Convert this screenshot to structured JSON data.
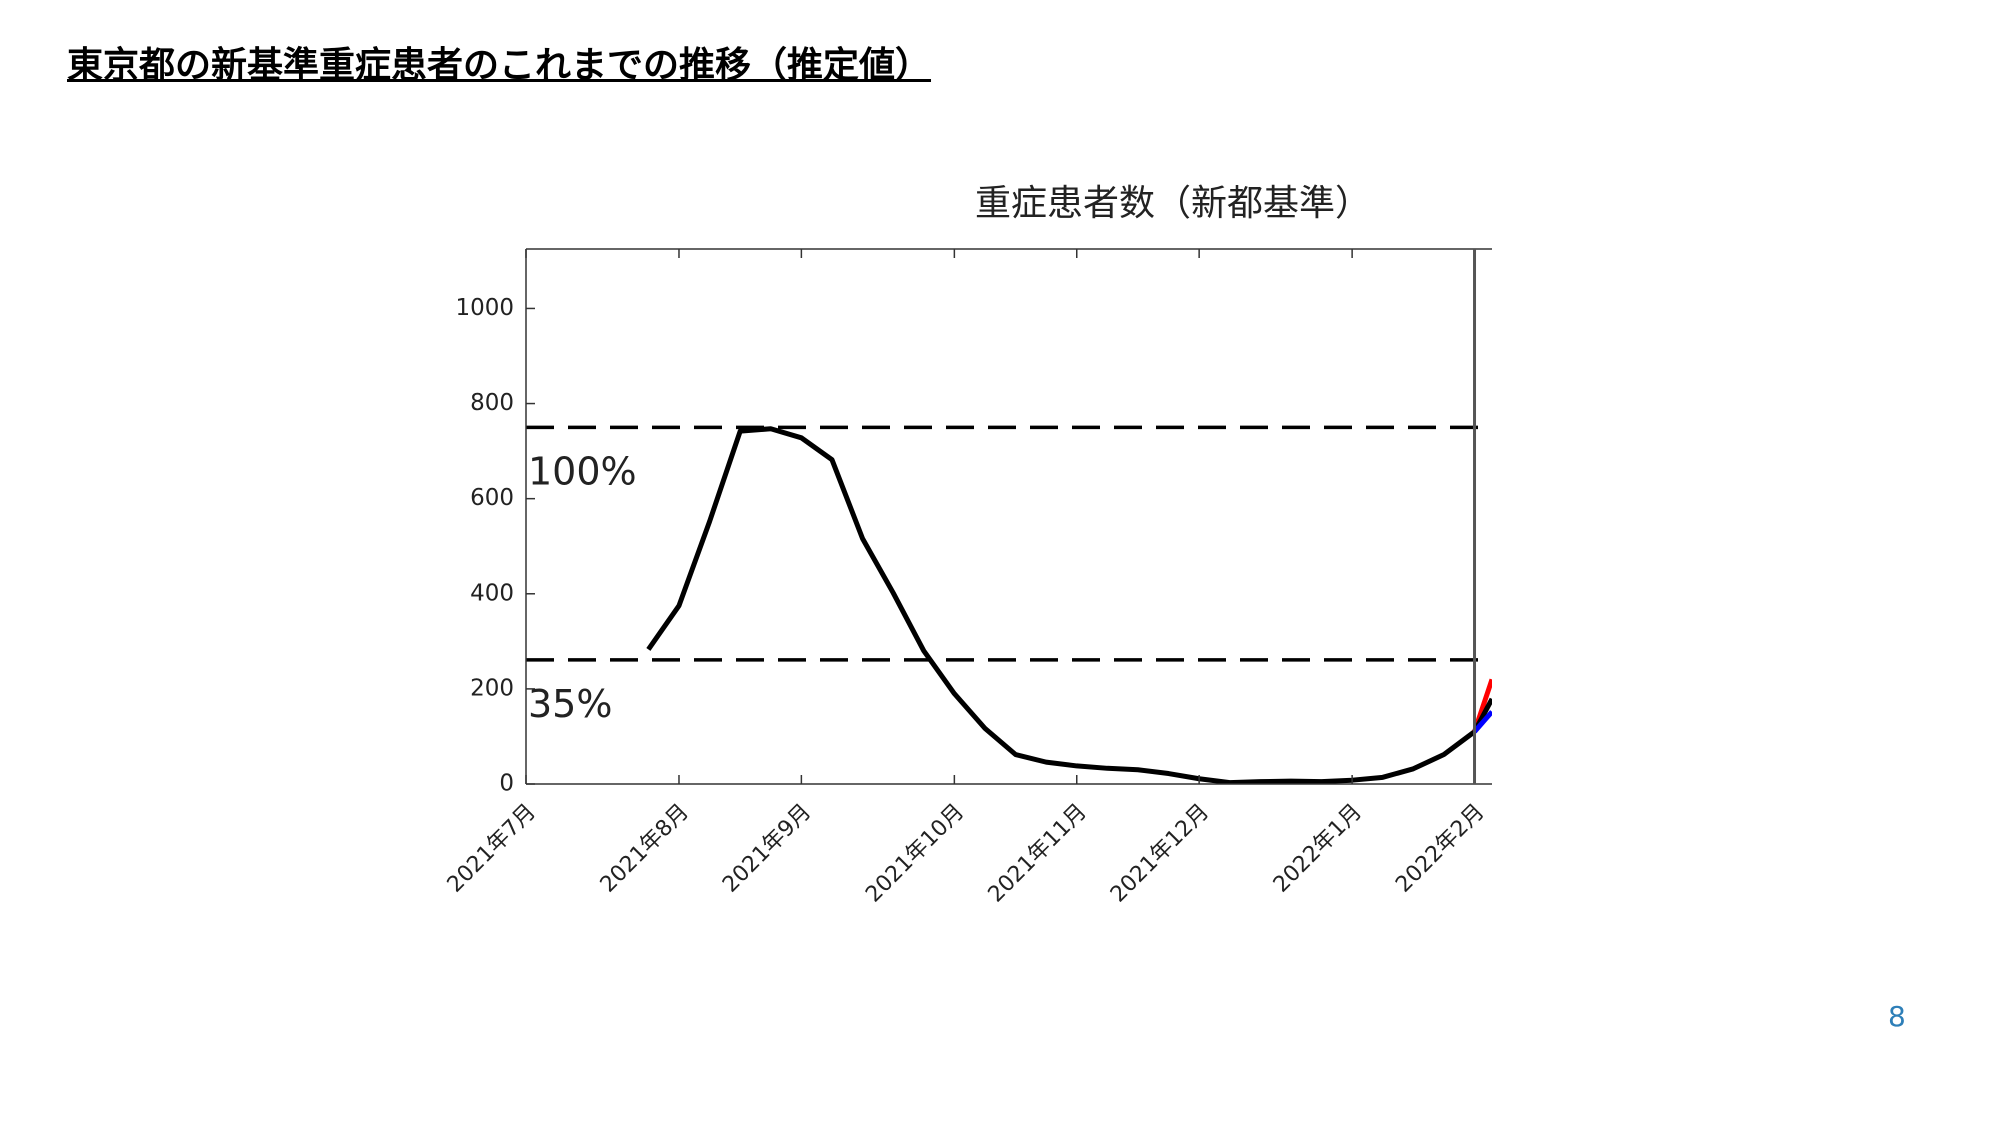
{
  "header": {
    "title": "東京都の新基準重症患者のこれまでの推移（推定値）"
  },
  "page_number": "8",
  "chart_data": {
    "type": "line",
    "title": "重症患者数（新都基準）",
    "xlim": [
      "2021-07-01",
      "2022-02-07"
    ],
    "xticks": [
      {
        "value": "2021-07-01",
        "label": "2021年7月"
      },
      {
        "value": "2021-08-05",
        "label": "2021年8月"
      },
      {
        "value": "2021-09-02",
        "label": "2021年9月"
      },
      {
        "value": "2021-10-07",
        "label": "2021年10月"
      },
      {
        "value": "2021-11-04",
        "label": "2021年11月"
      },
      {
        "value": "2021-12-02",
        "label": "2021年12月"
      },
      {
        "value": "2022-01-06",
        "label": "2022年1月"
      },
      {
        "value": "2022-02-03",
        "label": "2022年2月"
      }
    ],
    "ylim": [
      0,
      1125
    ],
    "yticks": [
      0,
      200,
      400,
      600,
      800,
      1000
    ],
    "hlines": [
      {
        "value": 750,
        "label": "100%"
      },
      {
        "value": 261,
        "label": "35%"
      }
    ],
    "vline": "2022-02-03",
    "series": [
      {
        "color": "#000000",
        "x": [
          "2021-07-29",
          "2021-08-05",
          "2021-08-12",
          "2021-08-19",
          "2021-08-26",
          "2021-09-02",
          "2021-09-09",
          "2021-09-16",
          "2021-09-23",
          "2021-09-30",
          "2021-10-07",
          "2021-10-14",
          "2021-10-21",
          "2021-10-28",
          "2021-11-04",
          "2021-11-11",
          "2021-11-18",
          "2021-11-25",
          "2021-12-02",
          "2021-12-09",
          "2021-12-16",
          "2021-12-23",
          "2021-12-30",
          "2022-01-06",
          "2022-01-13",
          "2022-01-20",
          "2022-01-27",
          "2022-02-03"
        ],
        "values": [
          283,
          375,
          552,
          742,
          747,
          728,
          682,
          516,
          402,
          280,
          190,
          117,
          62,
          46,
          38,
          33,
          30,
          22,
          11,
          3,
          5,
          6,
          5,
          8,
          14,
          32,
          62,
          110
        ]
      },
      {
        "color": "#ff0000",
        "x": [
          "2022-02-03",
          "2022-02-07"
        ],
        "values": [
          110,
          220
        ]
      },
      {
        "color": "#000000",
        "x": [
          "2022-02-03",
          "2022-02-07"
        ],
        "values": [
          110,
          179
        ]
      },
      {
        "color": "#0000ff",
        "x": [
          "2022-02-03",
          "2022-02-07"
        ],
        "values": [
          110,
          152
        ]
      }
    ]
  }
}
